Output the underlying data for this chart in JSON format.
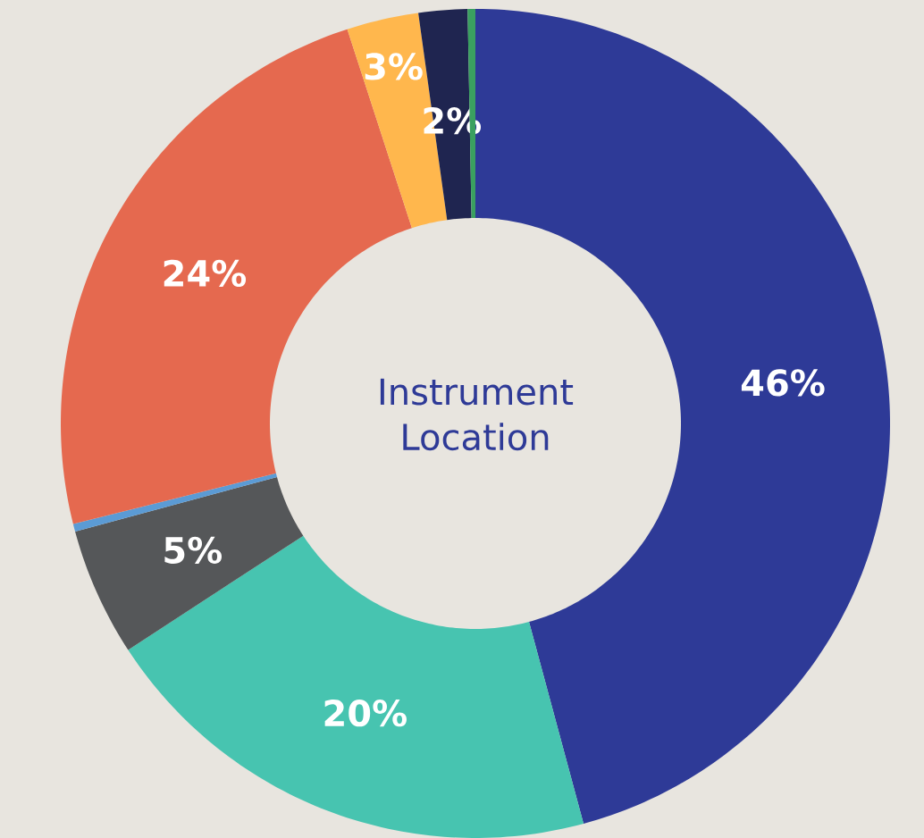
{
  "chart_data": {
    "type": "donut",
    "title": "Instrument Location",
    "categories": [
      null,
      null,
      null,
      null,
      null,
      null,
      null,
      null
    ],
    "values": [
      45.8,
      20,
      5,
      0.3,
      23.9,
      2.8,
      1.9,
      0.3
    ],
    "value_labels": [
      "46%",
      "20%",
      "5%",
      null,
      "24%",
      "3%",
      "2%",
      null
    ],
    "colors": [
      "#2e3a97",
      "#47c4b0",
      "#555759",
      "#5b9bd5",
      "#e5694f",
      "#ffb74d",
      "#1f2550",
      "#3aa060"
    ]
  }
}
